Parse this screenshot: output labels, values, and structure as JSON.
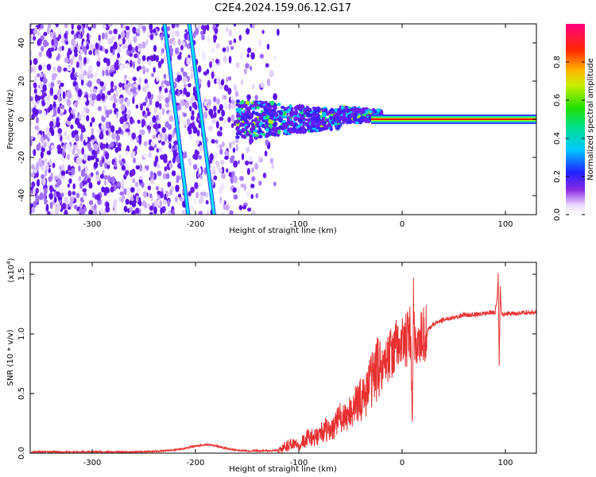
{
  "title": "C2E4.2024.159.06.12.G17",
  "colors": {
    "snr_line": "#e83030",
    "trace_core": "#00e5ff",
    "trace_edge": "#2a40ff",
    "speckle": "#6a1cf0",
    "carrier_core": "#e8001a"
  },
  "chart_data": [
    {
      "type": "heatmap",
      "title": "C2E4.2024.159.06.12.G17",
      "xlabel": "Height of straight line (km)",
      "ylabel": "Frequency (Hz)",
      "xlim": [
        -360,
        130
      ],
      "ylim": [
        -50,
        50
      ],
      "xticks": [
        -300,
        -200,
        -100,
        0,
        100
      ],
      "xtick_labels": [
        "-300",
        "-200",
        "-100",
        "0",
        "100"
      ],
      "yticks": [
        -40,
        -20,
        0,
        20,
        40
      ],
      "ytick_labels": [
        "-40",
        "-20",
        "0",
        "20",
        "40"
      ],
      "colorbar": {
        "label": "Normalized spectral amplitude",
        "range": [
          0.0,
          1.0
        ],
        "ticks": [
          0.0,
          0.2,
          0.4,
          0.6,
          0.8
        ],
        "tick_labels": [
          "0.0",
          "0.2",
          "0.4",
          "0.6",
          "0.8"
        ],
        "colormap": "rainbow (white → purple → blue → cyan → green → yellow → red → magenta)"
      },
      "features": {
        "diagonal_traces": [
          {
            "x": [
              -207,
              -230
            ],
            "y": [
              -50,
              50
            ]
          },
          {
            "x": [
              -182,
              -206
            ],
            "y": [
              -50,
              50
            ]
          }
        ],
        "carrier_line": {
          "x_start": -30,
          "x_end": 130,
          "frequency": 0
        },
        "speckle_region_x": [
          -360,
          -120
        ],
        "transition_region_x": [
          -160,
          -20
        ]
      },
      "grid": false
    },
    {
      "type": "line",
      "xlabel": "Height of straight line (km)",
      "ylabel": "SNR (10 * v/v)",
      "yscale_label": "(x10",
      "yscale_exponent": "4",
      "yscale_suffix": ")",
      "xlim": [
        -360,
        130
      ],
      "ylim": [
        0.0,
        1.6
      ],
      "xticks": [
        -300,
        -200,
        -100,
        0,
        100
      ],
      "xtick_labels": [
        "-300",
        "-200",
        "-100",
        "0",
        "100"
      ],
      "yticks": [
        0.0,
        0.5,
        1.0,
        1.5
      ],
      "ytick_labels": [
        "0.0",
        "0.5",
        "1.0",
        "1.5"
      ],
      "series": [
        {
          "x": [
            -360,
            -340,
            -320,
            -300,
            -280,
            -260,
            -240,
            -220,
            -210,
            -200,
            -190,
            -185,
            -180,
            -170,
            -160,
            -150,
            -140,
            -130,
            -120,
            -115,
            -110,
            -105,
            -100,
            -95,
            -90,
            -85,
            -80,
            -75,
            -70,
            -65,
            -60,
            -55,
            -50,
            -45,
            -40,
            -35,
            -30,
            -25,
            -20,
            -15,
            -10,
            -5,
            0,
            5,
            8,
            10,
            11,
            12,
            14,
            16,
            18,
            20,
            25,
            30,
            35,
            40,
            50,
            60,
            70,
            80,
            85,
            90,
            92,
            93,
            94,
            95,
            96,
            97,
            100,
            110,
            120,
            130
          ],
          "y": [
            0.01,
            0.01,
            0.01,
            0.01,
            0.01,
            0.01,
            0.015,
            0.025,
            0.04,
            0.06,
            0.07,
            0.07,
            0.06,
            0.04,
            0.025,
            0.02,
            0.02,
            0.02,
            0.025,
            0.04,
            0.07,
            0.09,
            0.08,
            0.1,
            0.14,
            0.12,
            0.16,
            0.2,
            0.18,
            0.24,
            0.3,
            0.28,
            0.36,
            0.4,
            0.45,
            0.5,
            0.62,
            0.7,
            0.72,
            0.78,
            0.85,
            0.9,
            0.92,
            0.95,
            1.0,
            0.3,
            1.2,
            0.9,
            0.96,
            0.92,
            0.96,
            0.98,
            1.03,
            1.08,
            1.1,
            1.12,
            1.14,
            1.16,
            1.16,
            1.17,
            1.18,
            1.18,
            1.3,
            1.5,
            0.75,
            1.4,
            1.2,
            1.16,
            1.17,
            1.17,
            1.18,
            1.18
          ]
        }
      ],
      "grid": false
    }
  ]
}
